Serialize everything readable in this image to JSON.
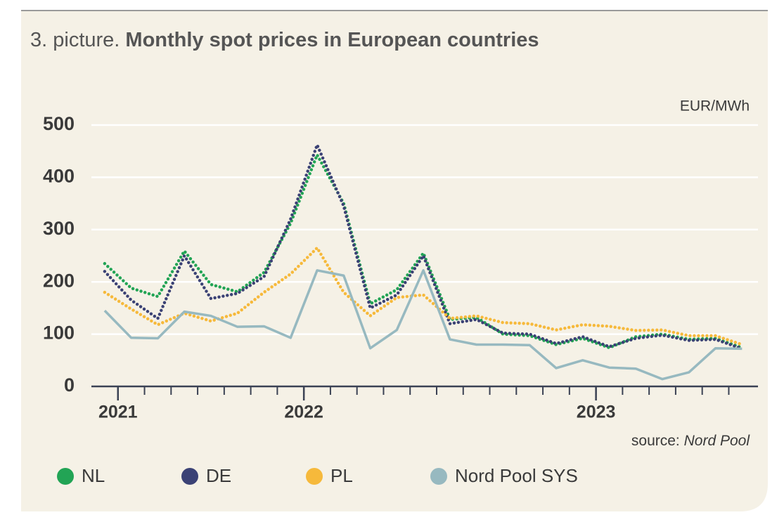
{
  "chart_data": {
    "type": "line",
    "title_prefix": "3. picture.",
    "title": "Monthly spot prices in European countries",
    "unit": "EUR/MWh",
    "source": {
      "prefix": "source:",
      "name": "Nord Pool"
    },
    "x": [
      0,
      1,
      2,
      3,
      4,
      5,
      6,
      7,
      8,
      9,
      10,
      11,
      12,
      13,
      14,
      15,
      16,
      17,
      18,
      19,
      20,
      21,
      22,
      23,
      24
    ],
    "xlim": [
      -0.5,
      24.6
    ],
    "xticks": [
      {
        "value": 0.5,
        "label": "2021"
      },
      {
        "value": 7.5,
        "label": "2022"
      },
      {
        "value": 18.5,
        "label": "2023"
      }
    ],
    "xminor_ticks": [
      0.5,
      1.5,
      2.5,
      3.5,
      4.5,
      5.5,
      6.5,
      7.5,
      8.5,
      9.5,
      10.5,
      11.5,
      12.5,
      13.5,
      14.5,
      15.5,
      16.5,
      17.5,
      18.5,
      19.5,
      20.5,
      21.5,
      22.5,
      23.5
    ],
    "ylim": [
      0,
      500
    ],
    "yticks": [
      0,
      100,
      200,
      300,
      400,
      500
    ],
    "grid": true,
    "series": [
      {
        "name": "NL",
        "color": "#22a455",
        "style": "dotted",
        "values": [
          235,
          188,
          172,
          259,
          195,
          181,
          218,
          312,
          443,
          350,
          158,
          185,
          255,
          128,
          132,
          100,
          97,
          80,
          92,
          74,
          95,
          100,
          90,
          92,
          74
        ]
      },
      {
        "name": "DE",
        "color": "#3b4275",
        "style": "dotted",
        "values": [
          220,
          165,
          130,
          250,
          168,
          178,
          210,
          320,
          462,
          345,
          150,
          175,
          250,
          120,
          128,
          102,
          100,
          82,
          95,
          76,
          92,
          98,
          88,
          90,
          72
        ]
      },
      {
        "name": "PL",
        "color": "#f6b93b",
        "style": "dotted",
        "values": [
          180,
          148,
          118,
          140,
          125,
          140,
          180,
          215,
          265,
          180,
          135,
          170,
          175,
          130,
          135,
          122,
          120,
          108,
          118,
          115,
          107,
          108,
          97,
          97,
          80
        ]
      },
      {
        "name": "Nord Pool SYS",
        "color": "#97b9c0",
        "style": "solid",
        "values": [
          145,
          93,
          92,
          143,
          135,
          114,
          115,
          93,
          222,
          212,
          73,
          108,
          222,
          90,
          80,
          80,
          79,
          35,
          50,
          36,
          34,
          14,
          27,
          73,
          72
        ]
      }
    ]
  }
}
